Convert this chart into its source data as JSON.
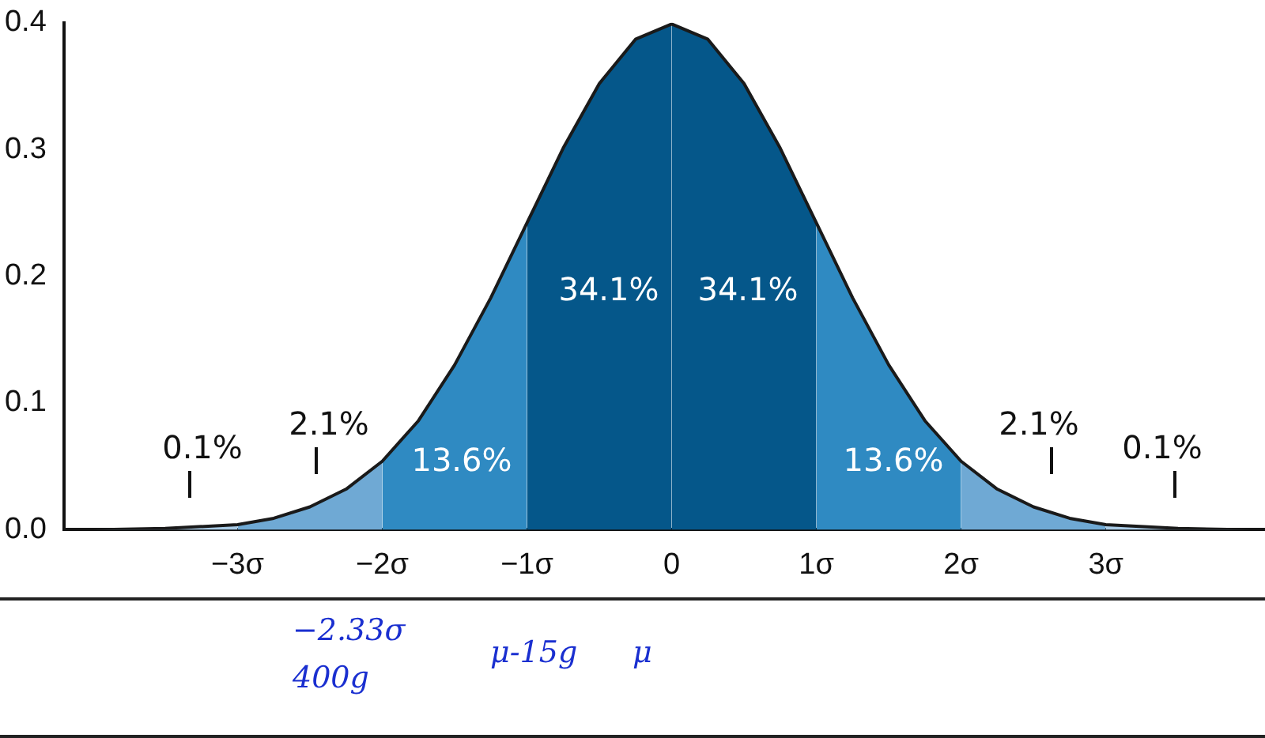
{
  "chart_data": {
    "type": "area",
    "xlim": [
      -4.2,
      4.1
    ],
    "ylim": [
      0,
      0.4
    ],
    "xticks": [
      {
        "value": -3,
        "label": "−3σ"
      },
      {
        "value": -2,
        "label": "−2σ"
      },
      {
        "value": -1,
        "label": "−1σ"
      },
      0,
      {
        "value": 1,
        "label": "1σ"
      },
      {
        "value": 2,
        "label": "2σ"
      },
      {
        "value": 3,
        "label": "3σ"
      }
    ],
    "yticks": [
      {
        "value": 0,
        "label": "0.0"
      },
      0.1,
      0.2,
      0.3,
      0.4
    ],
    "grid": false,
    "legend": false,
    "series": [
      {
        "color": "#a9cbe6",
        "x": [
          -4.2,
          -4,
          -3.5,
          -3
        ],
        "values": [
          0,
          0,
          0.001,
          0.004
        ]
      },
      {
        "color": "#6fa9d4",
        "x": [
          -3,
          -2.75,
          -2.5,
          -2.25,
          -2
        ],
        "values": [
          0.004,
          0.009,
          0.018,
          0.032,
          0.054
        ]
      },
      {
        "color": "#2f8ac2",
        "x": [
          -2,
          -1.75,
          -1.5,
          -1.25,
          -1
        ],
        "values": [
          0.054,
          0.086,
          0.13,
          0.183,
          0.242
        ]
      },
      {
        "color": "#05578a",
        "x": [
          -1,
          -0.75,
          -0.5,
          -0.25,
          0
        ],
        "values": [
          0.242,
          0.301,
          0.352,
          0.387,
          0.399
        ]
      },
      {
        "color": "#05578a",
        "x": [
          0,
          0.25,
          0.5,
          0.75,
          1
        ],
        "values": [
          0.399,
          0.387,
          0.352,
          0.301,
          0.242
        ]
      },
      {
        "color": "#2f8ac2",
        "x": [
          1,
          1.25,
          1.5,
          1.75,
          2
        ],
        "values": [
          0.242,
          0.183,
          0.13,
          0.086,
          0.054
        ]
      },
      {
        "color": "#6fa9d4",
        "x": [
          2,
          2.25,
          2.5,
          2.75,
          3
        ],
        "values": [
          0.054,
          0.032,
          0.018,
          0.009,
          0.004
        ]
      },
      {
        "color": "#a9cbe6",
        "x": [
          3,
          3.5,
          4,
          4.1
        ],
        "values": [
          0.004,
          0.001,
          0,
          0
        ]
      },
      {
        "type": "line",
        "color": "#1a1a1a",
        "x": [
          -4.2,
          -4,
          -3.5,
          -3,
          -2.75,
          -2.5,
          -2.25,
          -2,
          -1.75,
          -1.5,
          -1.25,
          -1,
          -0.75,
          -0.5,
          -0.25,
          0,
          0.25,
          0.5,
          0.75,
          1,
          1.25,
          1.5,
          1.75,
          2,
          2.25,
          2.5,
          2.75,
          3,
          3.5,
          4,
          4.1
        ],
        "values": [
          0,
          0,
          0.001,
          0.004,
          0.009,
          0.018,
          0.032,
          0.054,
          0.086,
          0.13,
          0.183,
          0.242,
          0.301,
          0.352,
          0.387,
          0.399,
          0.387,
          0.352,
          0.301,
          0.242,
          0.183,
          0.13,
          0.086,
          0.054,
          0.032,
          0.018,
          0.009,
          0.004,
          0.001,
          0,
          0
        ]
      }
    ],
    "annotations": [
      "0.1%",
      "2.1%",
      "13.6%",
      "34.1%",
      "34.1%",
      "13.6%",
      "2.1%",
      "0.1%",
      "−2.33σ",
      "400g",
      "μ-15g",
      "μ"
    ]
  }
}
